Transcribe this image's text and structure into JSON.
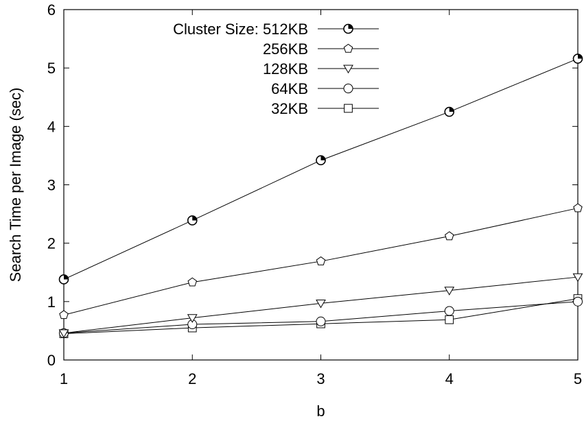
{
  "chart_data": {
    "type": "line",
    "title": "",
    "xlabel": "b",
    "ylabel": "Search Time per Image (sec)",
    "x": [
      1,
      2,
      3,
      4,
      5
    ],
    "xlim": [
      1,
      5
    ],
    "ylim": [
      0,
      6
    ],
    "xticks": [
      "1",
      "2",
      "3",
      "4",
      "5"
    ],
    "yticks": [
      "0",
      "1",
      "2",
      "3",
      "4",
      "5",
      "6"
    ],
    "grid": false,
    "legend_position": "top-left",
    "series": [
      {
        "name": "Cluster Size: 512KB",
        "marker": "half-filled-circle",
        "values": [
          1.38,
          2.39,
          3.42,
          4.25,
          5.16
        ]
      },
      {
        "name": "256KB",
        "marker": "pentagon",
        "values": [
          0.77,
          1.33,
          1.69,
          2.12,
          2.6
        ]
      },
      {
        "name": "128KB",
        "marker": "triangle-down",
        "values": [
          0.46,
          0.72,
          0.97,
          1.19,
          1.42
        ]
      },
      {
        "name": "64KB",
        "marker": "circle",
        "values": [
          0.46,
          0.61,
          0.66,
          0.84,
          1.0
        ]
      },
      {
        "name": "32KB",
        "marker": "square",
        "values": [
          0.45,
          0.55,
          0.62,
          0.69,
          1.05
        ]
      }
    ],
    "colors": {
      "line": "#000000",
      "background": "#ffffff"
    }
  }
}
